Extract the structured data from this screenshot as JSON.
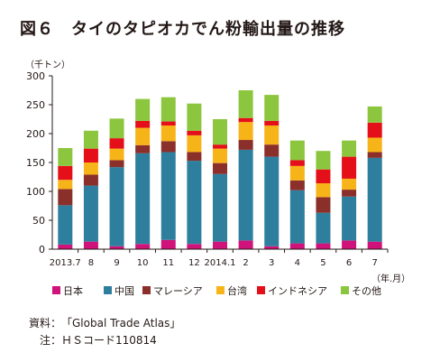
{
  "title": "図６　タイのタピオカでん粉輸出量の推移",
  "notes": {
    "source_label": "資料：",
    "source_value": "「Global Trade Atlas」",
    "note_label": "注：",
    "note_value": "ＨＳコード110814"
  },
  "chart_data": {
    "type": "bar",
    "stacked": true,
    "y_unit": "（千トン）",
    "x_unit": "（年.月）",
    "ylim": [
      0,
      300
    ],
    "yticks": [
      0,
      50,
      100,
      150,
      200,
      250,
      300
    ],
    "grid": false,
    "legend_position": "bottom",
    "categories": [
      "2013.7",
      "8",
      "9",
      "10",
      "11",
      "12",
      "2014.1",
      "2",
      "3",
      "4",
      "5",
      "6",
      "7"
    ],
    "series": [
      {
        "name": "日本",
        "color": "#d0127b",
        "values": [
          8,
          13,
          5,
          9,
          16,
          9,
          13,
          15,
          5,
          10,
          10,
          15,
          13
        ]
      },
      {
        "name": "中国",
        "color": "#2e7f9e",
        "values": [
          68,
          97,
          137,
          157,
          152,
          144,
          117,
          157,
          155,
          92,
          53,
          76,
          145
        ]
      },
      {
        "name": "マレーシア",
        "color": "#8b2f2b",
        "values": [
          28,
          19,
          12,
          14,
          19,
          15,
          19,
          17,
          21,
          17,
          27,
          12,
          10
        ]
      },
      {
        "name": "台湾",
        "color": "#f7b418",
        "values": [
          16,
          21,
          20,
          30,
          27,
          29,
          25,
          31,
          33,
          25,
          24,
          19,
          25
        ]
      },
      {
        "name": "インドネシア",
        "color": "#e50f19",
        "values": [
          24,
          24,
          18,
          12,
          7,
          8,
          7,
          7,
          8,
          10,
          24,
          38,
          26
        ]
      },
      {
        "name": "その他",
        "color": "#8cc63f",
        "values": [
          31,
          31,
          34,
          38,
          42,
          47,
          44,
          48,
          45,
          34,
          32,
          28,
          28
        ]
      }
    ]
  }
}
